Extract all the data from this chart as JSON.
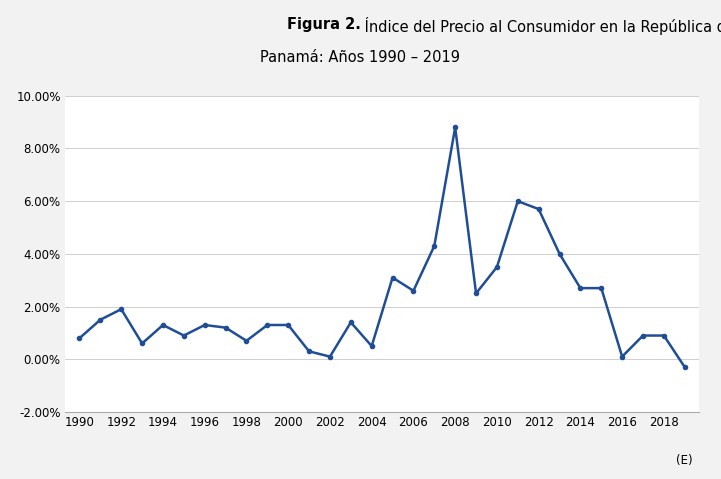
{
  "title_bold": "Figura 2.",
  "title_line1_rest": " Índice del Precio al Consumidor en la República de",
  "title_line2": "Panamá: Años 1990 – 2019",
  "years": [
    1990,
    1991,
    1992,
    1993,
    1994,
    1995,
    1996,
    1997,
    1998,
    1999,
    2000,
    2001,
    2002,
    2003,
    2004,
    2005,
    2006,
    2007,
    2008,
    2009,
    2010,
    2011,
    2012,
    2013,
    2014,
    2015,
    2016,
    2017,
    2018,
    2019
  ],
  "values": [
    0.008,
    0.015,
    0.019,
    0.006,
    0.013,
    0.009,
    0.013,
    0.012,
    0.007,
    0.013,
    0.013,
    0.003,
    0.001,
    0.014,
    0.005,
    0.031,
    0.026,
    0.043,
    0.088,
    0.025,
    0.035,
    0.06,
    0.057,
    0.04,
    0.027,
    0.027,
    0.001,
    0.009,
    0.009,
    -0.003
  ],
  "line_color": "#1f4e96",
  "marker": "o",
  "marker_size": 3.0,
  "line_width": 1.8,
  "ylim": [
    -0.02,
    0.1
  ],
  "yticks": [
    -0.02,
    0.0,
    0.02,
    0.04,
    0.06,
    0.08,
    0.1
  ],
  "xticks": [
    1990,
    1992,
    1994,
    1996,
    1998,
    2000,
    2002,
    2004,
    2006,
    2008,
    2010,
    2012,
    2014,
    2016,
    2018
  ],
  "grid_color": "#c8c8c8",
  "background_color": "#f2f2f2",
  "plot_bg_color": "#ffffff",
  "title_fontsize": 10.5,
  "tick_fontsize": 8.5,
  "fig_bg_color": "#f2f2f2"
}
